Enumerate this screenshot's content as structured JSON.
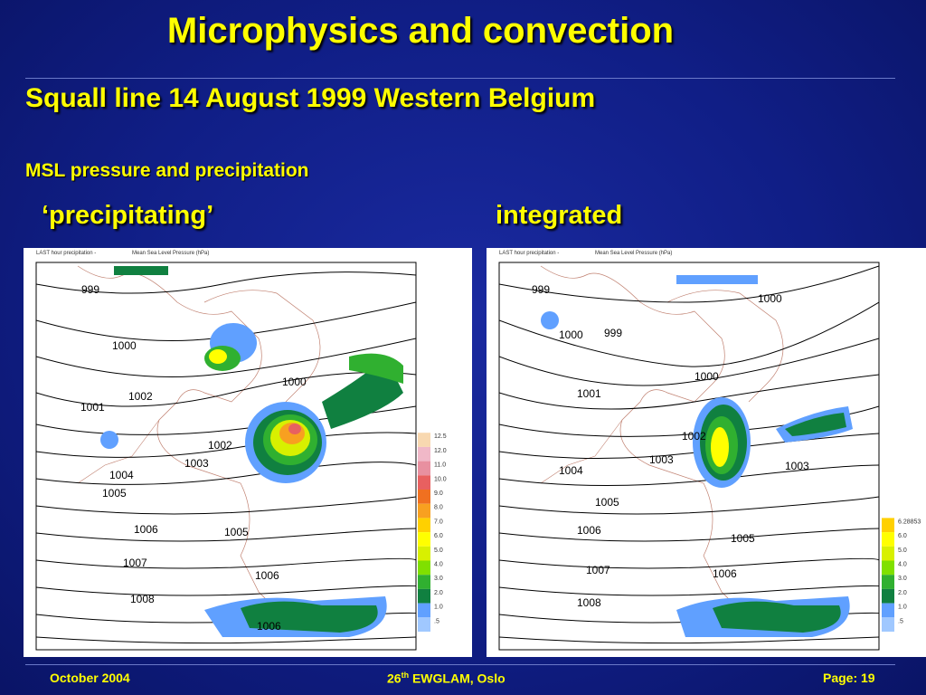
{
  "slide": {
    "title": "Microphysics and convection",
    "subtitle": "Squall line  14 August 1999 Western Belgium",
    "caption": "MSL pressure and precipitation"
  },
  "panels": [
    {
      "label": "‘precipitating’",
      "header_left": "LAST hour precipitation  -",
      "header_right": "Mean Sea Level Pressure (hPa)",
      "isobar_labels": [
        "999",
        "1000",
        "1001",
        "1002",
        "1002",
        "1003",
        "1004",
        "1005",
        "1006",
        "1005",
        "1007",
        "1006",
        "1008",
        "1006",
        "1000",
        "999"
      ],
      "legend": [
        "12.5",
        "12.0",
        "11.0",
        "10.0",
        "9.0",
        "8.0",
        "7.0",
        "6.0",
        "5.0",
        "4.0",
        "3.0",
        "2.0",
        "1.0",
        ".5"
      ],
      "legend_colors": [
        "#f8d8b0",
        "#f0b8c8",
        "#e890a0",
        "#e86060",
        "#f07020",
        "#f8a020",
        "#ffd000",
        "#ffff00",
        "#d8f000",
        "#80e000",
        "#30b030",
        "#108040",
        "#60a0ff",
        "#a0c8ff"
      ]
    },
    {
      "label": "integrated",
      "header_left": "LAST hour precipitation  -",
      "header_right": "Mean Sea Level Pressure (hPa)",
      "isobar_labels": [
        "999",
        "1000",
        "999",
        "1000",
        "1001",
        "1002",
        "1002",
        "1003",
        "1003",
        "1004",
        "1005",
        "1006",
        "1005",
        "1007",
        "1006",
        "1008",
        "1006",
        "1000",
        "999"
      ],
      "legend": [
        "6.28853",
        "6.0",
        "5.0",
        "4.0",
        "3.0",
        "2.0",
        "1.0",
        ".5"
      ],
      "legend_colors": [
        "#ffd000",
        "#ffff00",
        "#d8f000",
        "#80e000",
        "#30b030",
        "#108040",
        "#60a0ff",
        "#a0c8ff"
      ]
    }
  ],
  "footer": {
    "date": "October 2004",
    "conf_prefix": "26",
    "conf_sup": "th",
    "conf_suffix": " EWGLAM, Oslo",
    "page": "Page: 19"
  }
}
